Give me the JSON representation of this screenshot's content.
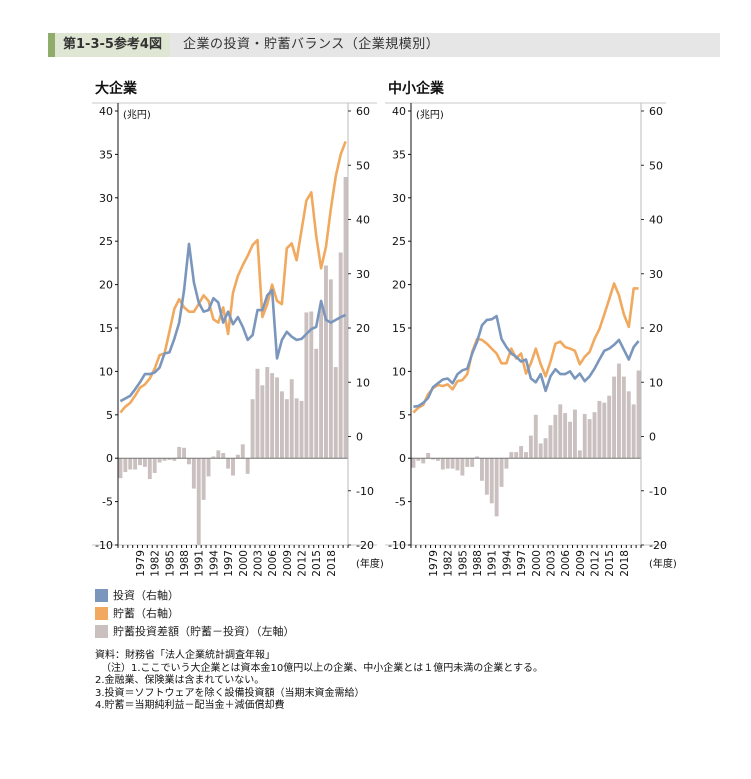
{
  "header": {
    "label": "第1-3-5参考4図",
    "title": "企業の投資・貯蓄バランス（企業規模別）"
  },
  "colors": {
    "investment": "#7b96bd",
    "savings": "#f0a95e",
    "gap": "#c9c0bf",
    "accent": "#8fac6a",
    "label_bg": "#dfe7d4",
    "header_bg": "#e6e6e6"
  },
  "legend": [
    {
      "label": "投資（右軸）",
      "color": "#7b96bd"
    },
    {
      "label": "貯蓄（右軸）",
      "color": "#f0a95e"
    },
    {
      "label": "貯蓄投資差額（貯蓄－投資）（左軸）",
      "color": "#c9c0bf"
    }
  ],
  "notes": [
    "資料：財務省「法人企業統計調査年報」",
    "（注）1.ここでいう大企業とは資本金10億円以上の企業、中小企業とは１億円未満の企業とする。",
    "2.金融業、保険業は含まれていない。",
    "3.投資＝ソフトウェアを除く設備投資額（当期末資金需給）",
    "4.貯蓄＝当期純利益－配当金＋減価償却費"
  ],
  "chart_data": [
    {
      "type": "bar+line",
      "title": "大企業",
      "left_unit": "(兆円)",
      "xlabel": "(年度)",
      "left_ylim": [
        -10,
        40
      ],
      "left_ticks": [
        40,
        35,
        30,
        25,
        20,
        15,
        10,
        5,
        0,
        -5,
        -10
      ],
      "right_ylim": [
        -20,
        60
      ],
      "right_ticks": [
        60,
        50,
        40,
        30,
        20,
        10,
        0,
        -10,
        -20
      ],
      "x_tick_labels": [
        "1979",
        "1982",
        "1985",
        "1988",
        "1991",
        "1994",
        "1997",
        "2000",
        "2003",
        "2006",
        "2009",
        "2012",
        "2015",
        "2018"
      ],
      "x_start": 1975,
      "x_end": 2021,
      "series": [
        {
          "name": "投資（右軸）",
          "axis": "right",
          "values": [
            6.5,
            7.0,
            7.5,
            8.7,
            10.0,
            11.5,
            11.5,
            11.8,
            12.7,
            15.3,
            15.5,
            18.0,
            21.0,
            27.0,
            35.5,
            28.4,
            24.7,
            23.0,
            23.3,
            25.5,
            24.7,
            21.0,
            23.0,
            20.7,
            22.0,
            20.2,
            17.8,
            18.7,
            23.3,
            23.3,
            26.0,
            27.0,
            14.4,
            17.8,
            19.3,
            18.4,
            17.8,
            18.0,
            18.9,
            19.8,
            20.2,
            25.0,
            21.5,
            21.0,
            21.5,
            22.0,
            22.4
          ]
        },
        {
          "name": "貯蓄（右軸）",
          "axis": "right",
          "values": [
            4.4,
            5.5,
            6.2,
            7.5,
            9.0,
            9.6,
            10.7,
            12.5,
            15.0,
            15.3,
            19.3,
            23.5,
            25.3,
            23.8,
            23.0,
            23.0,
            24.4,
            26.0,
            25.0,
            21.6,
            21.0,
            23.8,
            18.9,
            26.5,
            29.6,
            31.6,
            33.3,
            35.3,
            36.2,
            22.0,
            24.4,
            28.0,
            25.0,
            24.4,
            34.7,
            35.6,
            32.5,
            38.0,
            43.5,
            45.0,
            37.0,
            31.0,
            35.0,
            42.0,
            48.0,
            52.0,
            54.4
          ]
        },
        {
          "name": "貯蓄投資差額（貯蓄－投資）（左軸）",
          "axis": "left",
          "values": [
            -2.3,
            -1.6,
            -1.3,
            -1.3,
            -0.8,
            -1.0,
            -2.4,
            -1.7,
            -0.5,
            -0.3,
            -0.2,
            -0.3,
            1.3,
            1.2,
            -0.7,
            -3.5,
            -10.2,
            -4.8,
            -2.1,
            0.2,
            0.9,
            0.6,
            -1.2,
            -2.0,
            0.4,
            1.6,
            -1.8,
            6.8,
            10.3,
            8.4,
            10.5,
            9.8,
            9.3,
            7.7,
            6.8,
            9.1,
            6.9,
            6.6,
            16.8,
            16.9,
            12.6,
            17.5,
            22.2,
            20.6,
            10.5,
            23.7,
            32.4
          ]
        }
      ]
    },
    {
      "type": "bar+line",
      "title": "中小企業",
      "left_unit": "(兆円)",
      "xlabel": "(年度)",
      "left_ylim": [
        -10,
        40
      ],
      "left_ticks": [
        40,
        35,
        30,
        25,
        20,
        15,
        10,
        5,
        0,
        -5,
        -10
      ],
      "right_ylim": [
        -20,
        60
      ],
      "right_ticks": [
        60,
        50,
        40,
        30,
        20,
        10,
        0,
        -10,
        -20
      ],
      "x_tick_labels": [
        "1979",
        "1982",
        "1985",
        "1988",
        "1991",
        "1994",
        "1997",
        "2000",
        "2003",
        "2006",
        "2009",
        "2012",
        "2015",
        "2018"
      ],
      "x_start": 1975,
      "x_end": 2021,
      "series": [
        {
          "name": "投資（右軸）",
          "axis": "right",
          "values": [
            5.5,
            5.6,
            6.2,
            7.1,
            9.1,
            9.8,
            10.5,
            10.7,
            9.8,
            11.5,
            12.2,
            12.5,
            15.3,
            17.5,
            20.5,
            21.5,
            21.6,
            22.2,
            18.0,
            16.5,
            15.3,
            14.7,
            13.8,
            14.2,
            10.7,
            10.0,
            11.5,
            8.4,
            11.1,
            12.4,
            11.5,
            11.5,
            12.0,
            10.7,
            11.6,
            10.2,
            11.1,
            12.5,
            14.2,
            15.8,
            16.2,
            16.9,
            17.8,
            16.0,
            14.2,
            16.5,
            17.6
          ]
        },
        {
          "name": "貯蓄（右軸）",
          "axis": "right",
          "values": [
            4.4,
            5.3,
            5.8,
            7.8,
            8.9,
            9.5,
            9.3,
            9.6,
            8.7,
            10.2,
            10.4,
            11.5,
            15.6,
            18.0,
            17.8,
            17.1,
            16.2,
            15.3,
            13.5,
            13.5,
            16.2,
            14.4,
            15.3,
            11.6,
            13.5,
            16.2,
            13.3,
            11.1,
            13.8,
            17.1,
            17.5,
            16.5,
            16.2,
            15.8,
            13.3,
            14.7,
            15.6,
            18.0,
            19.8,
            22.5,
            25.3,
            28.2,
            26.0,
            22.5,
            20.2,
            27.3,
            27.3
          ]
        },
        {
          "name": "貯蓄投資差額（貯蓄－投資）（左軸）",
          "axis": "left",
          "values": [
            -1.1,
            -0.3,
            -0.6,
            0.6,
            -0.15,
            -0.3,
            -1.3,
            -1.2,
            -1.2,
            -1.4,
            -2.0,
            -1.0,
            -1.0,
            0.2,
            -2.6,
            -4.2,
            -5.2,
            -6.7,
            -3.3,
            -1.2,
            0.7,
            0.7,
            1.4,
            0.7,
            2.6,
            5.0,
            1.7,
            2.3,
            3.8,
            5.0,
            6.2,
            5.2,
            4.2,
            5.6,
            0.9,
            5.1,
            4.5,
            5.3,
            6.6,
            6.4,
            7.2,
            9.4,
            10.9,
            9.4,
            7.7,
            6.2,
            10.1
          ]
        }
      ]
    }
  ]
}
